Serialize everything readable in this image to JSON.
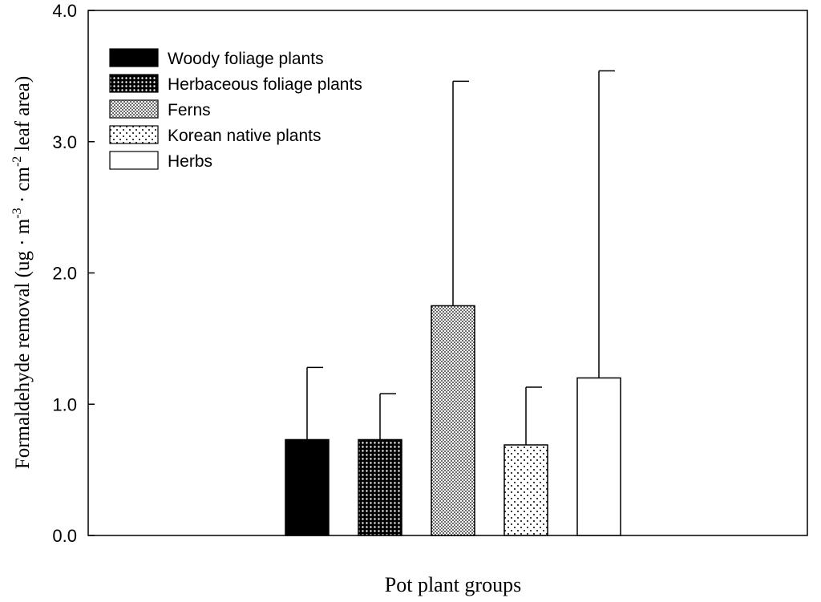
{
  "chart_data": {
    "type": "bar",
    "categories": [
      "Woody foliage plants",
      "Herbaceous foliage plants",
      "Ferns",
      "Korean native plants",
      "Herbs"
    ],
    "values": [
      0.73,
      0.73,
      1.75,
      0.69,
      1.2
    ],
    "error_upper": [
      1.28,
      1.08,
      3.46,
      1.13,
      3.54
    ],
    "fills": [
      "solid",
      "dense-dots",
      "fine-dots",
      "sparse-dots",
      "white"
    ],
    "ylim": [
      0.0,
      4.0
    ],
    "yticks": [
      "0.0",
      "1.0",
      "2.0",
      "3.0",
      "4.0"
    ],
    "xlabel": "Pot plant groups",
    "ylabel": {
      "main": "Formaldehyde removal (ug",
      "dot": "·",
      "m": "m",
      "exp1": "-3",
      "cm": "cm",
      "exp2": "-2",
      "tail": "leaf area)"
    },
    "legend_position": "top-left",
    "grid": false,
    "colors": {
      "bar_edge": "#000000",
      "bar_dark": "#000000",
      "background": "#ffffff"
    }
  }
}
